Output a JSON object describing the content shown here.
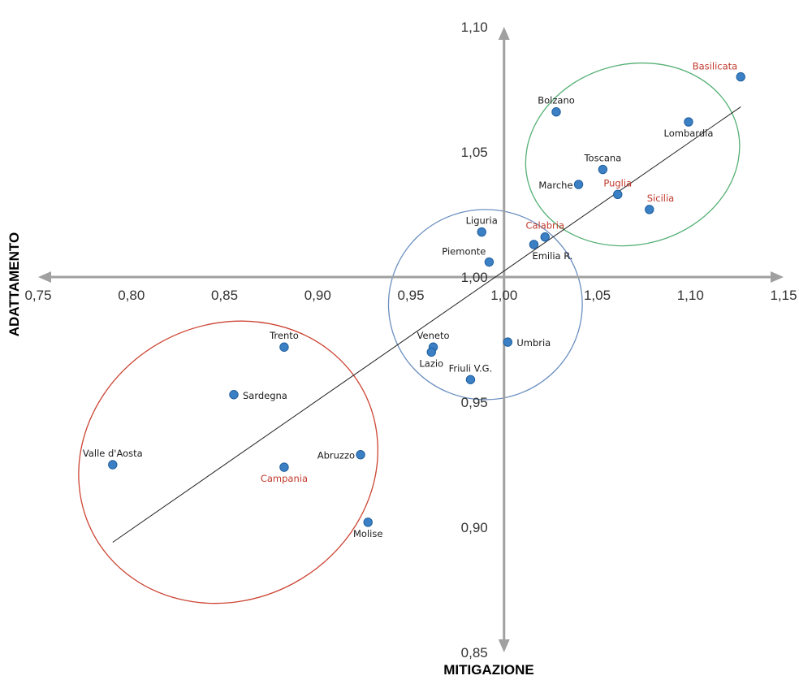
{
  "chart_data": {
    "type": "scatter",
    "xlabel": "MITIGAZIONE",
    "ylabel": "ADATTAMENTO",
    "xlim": [
      0.75,
      1.15
    ],
    "ylim": [
      0.85,
      1.1
    ],
    "x_ticks": [
      "0,75",
      "0,80",
      "0,85",
      "0,90",
      "0,95",
      "1,00",
      "1,05",
      "1,10",
      "1,15"
    ],
    "y_ticks": [
      "0,85",
      "0,90",
      "0,95",
      "1,00",
      "1,05",
      "1,10"
    ],
    "x_tick_values": [
      0.75,
      0.8,
      0.85,
      0.9,
      0.95,
      1.0,
      1.05,
      1.1,
      1.15
    ],
    "y_tick_values": [
      0.85,
      0.9,
      0.95,
      1.0,
      1.05,
      1.1
    ],
    "points": [
      {
        "label": "Basilicata",
        "x": 1.127,
        "y": 1.08,
        "highlight": true,
        "label_pos": "above-left"
      },
      {
        "label": "Bolzano",
        "x": 1.028,
        "y": 1.066,
        "highlight": false,
        "label_pos": "above"
      },
      {
        "label": "Lombardia",
        "x": 1.099,
        "y": 1.062,
        "highlight": false,
        "label_pos": "below"
      },
      {
        "label": "Toscana",
        "x": 1.053,
        "y": 1.043,
        "highlight": false,
        "label_pos": "above"
      },
      {
        "label": "Marche",
        "x": 1.04,
        "y": 1.037,
        "highlight": false,
        "label_pos": "left"
      },
      {
        "label": "Puglia",
        "x": 1.061,
        "y": 1.033,
        "highlight": true,
        "label_pos": "above"
      },
      {
        "label": "Sicilia",
        "x": 1.078,
        "y": 1.027,
        "highlight": true,
        "label_pos": "above-right"
      },
      {
        "label": "Liguria",
        "x": 0.988,
        "y": 1.018,
        "highlight": false,
        "label_pos": "above"
      },
      {
        "label": "Calabria",
        "x": 1.022,
        "y": 1.016,
        "highlight": true,
        "label_pos": "above"
      },
      {
        "label": "Emilia R.",
        "x": 1.016,
        "y": 1.013,
        "highlight": false,
        "label_pos": "below-right"
      },
      {
        "label": "Piemonte",
        "x": 0.992,
        "y": 1.006,
        "highlight": false,
        "label_pos": "above-left"
      },
      {
        "label": "Umbria",
        "x": 1.002,
        "y": 0.974,
        "highlight": false,
        "label_pos": "right"
      },
      {
        "label": "Veneto",
        "x": 0.962,
        "y": 0.972,
        "highlight": false,
        "label_pos": "above"
      },
      {
        "label": "Lazio",
        "x": 0.961,
        "y": 0.97,
        "highlight": false,
        "label_pos": "below"
      },
      {
        "label": "Friuli V.G.",
        "x": 0.982,
        "y": 0.959,
        "highlight": false,
        "label_pos": "above"
      },
      {
        "label": "Trento",
        "x": 0.882,
        "y": 0.972,
        "highlight": false,
        "label_pos": "above"
      },
      {
        "label": "Sardegna",
        "x": 0.855,
        "y": 0.953,
        "highlight": false,
        "label_pos": "right"
      },
      {
        "label": "Valle d'Aosta",
        "x": 0.79,
        "y": 0.925,
        "highlight": false,
        "label_pos": "above"
      },
      {
        "label": "Campania",
        "x": 0.882,
        "y": 0.924,
        "highlight": true,
        "label_pos": "below"
      },
      {
        "label": "Abruzzo",
        "x": 0.923,
        "y": 0.929,
        "highlight": false,
        "label_pos": "left"
      },
      {
        "label": "Molise",
        "x": 0.927,
        "y": 0.902,
        "highlight": false,
        "label_pos": "below"
      }
    ],
    "trendline": {
      "x1": 0.79,
      "y1": 0.894,
      "x2": 1.127,
      "y2": 1.068
    },
    "groups": [
      {
        "color": "#55b075",
        "cx": 1.069,
        "cy": 1.049,
        "rx": 0.058,
        "ry": 0.036,
        "rotate_deg": -15
      },
      {
        "color": "#6b8fc0",
        "cx": 0.99,
        "cy": 0.989,
        "rx": 0.052,
        "ry": 0.038,
        "rotate_deg": 0
      },
      {
        "color": "#cc4433",
        "cx": 0.852,
        "cy": 0.926,
        "rx": 0.082,
        "ry": 0.055,
        "rotate_deg": -28
      }
    ],
    "colors": {
      "point_fill": "#3b80c4",
      "point_stroke": "#1f5e9e",
      "label_normal": "#1a1a1a",
      "label_highlight": "#c0392b",
      "axis": "#a0a0a0",
      "trendline": "#222222"
    },
    "grid": false,
    "legend": "none"
  }
}
